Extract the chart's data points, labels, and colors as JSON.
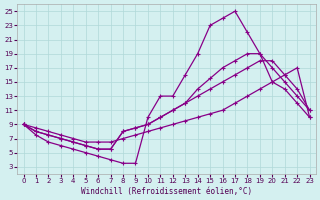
{
  "xlabel": "Windchill (Refroidissement éolien,°C)",
  "xlim": [
    -0.5,
    23.5
  ],
  "ylim": [
    2,
    26
  ],
  "xticks": [
    0,
    1,
    2,
    3,
    4,
    5,
    6,
    7,
    8,
    9,
    10,
    11,
    12,
    13,
    14,
    15,
    16,
    17,
    18,
    19,
    20,
    21,
    22,
    23
  ],
  "yticks": [
    3,
    5,
    7,
    9,
    11,
    13,
    15,
    17,
    19,
    21,
    23,
    25
  ],
  "background_color": "#d4f0f0",
  "line_color": "#880088",
  "grid_color": "#b0d8d8",
  "line1_x": [
    0,
    1,
    2,
    3,
    4,
    5,
    6,
    7,
    8,
    9,
    10,
    11,
    12,
    13,
    14,
    15,
    16,
    17,
    18,
    19,
    20,
    21,
    22,
    23
  ],
  "line1_y": [
    9,
    7.5,
    6.5,
    6,
    5.5,
    5,
    4.5,
    4,
    3.5,
    3.5,
    10,
    13,
    13,
    16,
    19,
    23,
    24,
    25,
    22,
    19,
    15,
    14,
    12,
    10
  ],
  "line2_x": [
    0,
    1,
    2,
    3,
    4,
    5,
    6,
    7,
    8,
    9,
    10,
    11,
    12,
    13,
    14,
    15,
    16,
    17,
    18,
    19,
    20,
    21,
    22,
    23
  ],
  "line2_y": [
    9,
    8,
    7.5,
    7,
    6.5,
    6,
    5.5,
    5.5,
    8,
    8.5,
    9,
    10,
    11,
    12,
    14,
    15.5,
    17,
    18,
    19,
    19,
    17,
    15,
    13,
    11
  ],
  "line3_x": [
    0,
    1,
    2,
    3,
    4,
    5,
    6,
    7,
    8,
    9,
    10,
    11,
    12,
    13,
    14,
    15,
    16,
    17,
    18,
    19,
    20,
    21,
    22,
    23
  ],
  "line3_y": [
    9,
    8,
    7.5,
    7,
    6.5,
    6,
    5.5,
    5.5,
    8,
    8.5,
    9,
    10,
    11,
    12,
    13,
    14,
    15,
    16,
    17,
    18,
    18,
    16,
    14,
    11
  ],
  "line4_x": [
    0,
    1,
    2,
    3,
    4,
    5,
    6,
    7,
    8,
    9,
    10,
    11,
    12,
    13,
    14,
    15,
    16,
    17,
    18,
    19,
    20,
    21,
    22,
    23
  ],
  "line4_y": [
    9,
    8.5,
    8,
    7.5,
    7,
    6.5,
    6.5,
    6.5,
    7,
    7.5,
    8,
    8.5,
    9,
    9.5,
    10,
    10.5,
    11,
    12,
    13,
    14,
    15,
    16,
    17,
    10
  ],
  "marker": "+",
  "markersize": 3,
  "linewidth": 0.9
}
